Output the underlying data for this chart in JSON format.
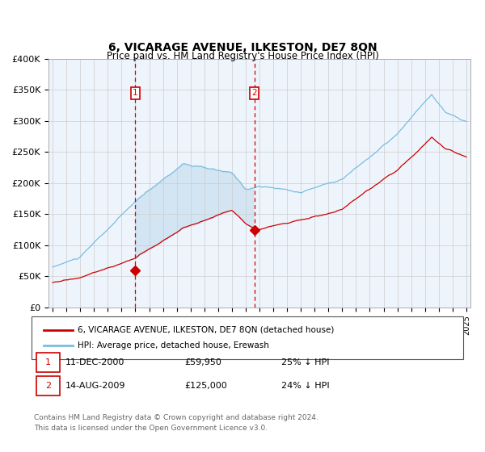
{
  "title": "6, VICARAGE AVENUE, ILKESTON, DE7 8QN",
  "subtitle": "Price paid vs. HM Land Registry's House Price Index (HPI)",
  "legend_line1": "6, VICARAGE AVENUE, ILKESTON, DE7 8QN (detached house)",
  "legend_line2": "HPI: Average price, detached house, Erewash",
  "footer1": "Contains HM Land Registry data © Crown copyright and database right 2024.",
  "footer2": "This data is licensed under the Open Government Licence v3.0.",
  "transaction1": {
    "label": "1",
    "date": "11-DEC-2000",
    "price": "£59,950",
    "hpi": "25% ↓ HPI",
    "year": 2001.0
  },
  "transaction2": {
    "label": "2",
    "date": "14-AUG-2009",
    "price": "£125,000",
    "hpi": "24% ↓ HPI",
    "year": 2009.62
  },
  "hpi_color": "#7bbce0",
  "price_color": "#cc0000",
  "fill_color": "#c8dff0",
  "ylim": [
    0,
    400000
  ],
  "xlim_min": 1994.7,
  "xlim_max": 2025.3
}
